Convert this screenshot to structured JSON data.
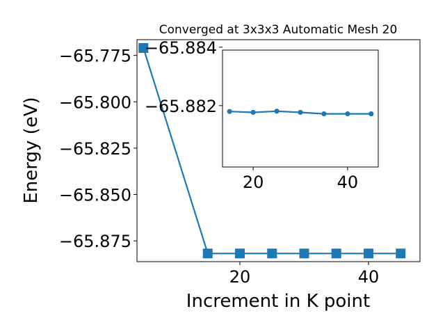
{
  "chart_data": [
    {
      "type": "line",
      "title": "Converged at 3x3x3 Automatic Mesh 20",
      "xlabel": "Increment in K point",
      "ylabel": "Energy (eV)",
      "x": [
        5,
        15,
        20,
        25,
        30,
        35,
        40,
        45
      ],
      "series": [
        {
          "values": [
            -65.771,
            -65.8818,
            -65.8818,
            -65.8818,
            -65.8818,
            -65.8818,
            -65.8818,
            -65.8818
          ],
          "color": "#1f77b4",
          "marker": "square"
        }
      ],
      "xlim": [
        4.0,
        48.0
      ],
      "ylim": [
        -65.8862,
        -65.7665
      ],
      "xticks": [
        "20",
        "40"
      ],
      "yticks": [
        "−65.775",
        "−65.800",
        "−65.825",
        "−65.850",
        "−65.875"
      ],
      "xtick_values": [
        20,
        40
      ],
      "ytick_values": [
        -65.775,
        -65.8,
        -65.825,
        -65.85,
        -65.875
      ],
      "grid": false,
      "legend": "none"
    },
    {
      "type": "line",
      "title": "",
      "xlabel": "",
      "ylabel": "",
      "x": [
        15,
        20,
        25,
        30,
        35,
        40,
        45
      ],
      "series": [
        {
          "values": [
            -65.8818,
            -65.88177,
            -65.88181,
            -65.88177,
            -65.88172,
            -65.88172,
            -65.88172
          ],
          "color": "#1f77b4",
          "marker": "circle"
        }
      ],
      "xlim": [
        13.5,
        46.5
      ],
      "ylim": [
        -65.8799,
        -65.8839
      ],
      "xticks": [
        "20",
        "40"
      ],
      "yticks": [
        "−65.884",
        "−65.882"
      ],
      "xtick_values": [
        20,
        40
      ],
      "ytick_values": [
        -65.884,
        -65.882
      ],
      "grid": false,
      "legend": "none"
    }
  ]
}
